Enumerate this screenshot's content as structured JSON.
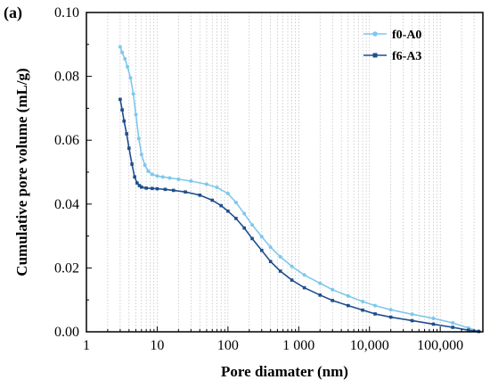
{
  "panel_label": "(a)",
  "chart_data": {
    "type": "line",
    "xlabel": "Pore diamater (nm)",
    "ylabel": "Cumulative pore volume (mL/g)",
    "xscale": "log",
    "xlim": [
      1,
      400000
    ],
    "ylim": [
      0,
      0.1
    ],
    "x_ticks": [
      {
        "value": 1,
        "label": "1"
      },
      {
        "value": 10,
        "label": "10"
      },
      {
        "value": 100,
        "label": "100"
      },
      {
        "value": 1000,
        "label": "1 000"
      },
      {
        "value": 10000,
        "label": "10,000"
      },
      {
        "value": 100000,
        "label": "100,000"
      }
    ],
    "y_ticks": [
      {
        "value": 0,
        "label": "0.00"
      },
      {
        "value": 0.02,
        "label": "0.02"
      },
      {
        "value": 0.04,
        "label": "0.04"
      },
      {
        "value": 0.06,
        "label": "0.06"
      },
      {
        "value": 0.08,
        "label": "0.08"
      },
      {
        "value": 0.1,
        "label": "0.10"
      }
    ],
    "grid": "vertical dotted minor lines",
    "legend_position": "top-right",
    "series": [
      {
        "name": "f0-A0",
        "color": "#7ec8ec",
        "marker": "circle",
        "x": [
          3.0,
          3.2,
          3.5,
          3.8,
          4.2,
          4.6,
          5.0,
          5.5,
          6.0,
          6.7,
          7.5,
          8.5,
          10,
          12,
          15,
          20,
          30,
          50,
          70,
          100,
          130,
          170,
          220,
          300,
          400,
          550,
          800,
          1200,
          2000,
          3000,
          5000,
          8000,
          12000,
          20000,
          40000,
          80000,
          150000,
          250000,
          350000
        ],
        "y": [
          0.0892,
          0.0875,
          0.0855,
          0.083,
          0.0795,
          0.0745,
          0.068,
          0.0605,
          0.0555,
          0.0522,
          0.0503,
          0.0493,
          0.0488,
          0.0485,
          0.0482,
          0.0478,
          0.0472,
          0.0462,
          0.0452,
          0.0433,
          0.0405,
          0.037,
          0.0335,
          0.0298,
          0.0265,
          0.0235,
          0.0205,
          0.0178,
          0.0152,
          0.0132,
          0.0112,
          0.0095,
          0.0082,
          0.0069,
          0.0055,
          0.0042,
          0.0028,
          0.0012,
          0.0002
        ]
      },
      {
        "name": "f6-A3",
        "color": "#1f4e8c",
        "marker": "square",
        "x": [
          3.0,
          3.2,
          3.4,
          3.7,
          4.0,
          4.4,
          4.8,
          5.2,
          5.6,
          6.0,
          7.0,
          8.5,
          10,
          13,
          17,
          25,
          40,
          60,
          80,
          100,
          130,
          170,
          220,
          300,
          400,
          550,
          800,
          1200,
          2000,
          3000,
          5000,
          8000,
          12000,
          20000,
          40000,
          80000,
          150000,
          250000,
          350000
        ],
        "y": [
          0.0728,
          0.0695,
          0.066,
          0.062,
          0.0575,
          0.0525,
          0.0485,
          0.0466,
          0.0458,
          0.0453,
          0.045,
          0.0449,
          0.0448,
          0.0446,
          0.0443,
          0.0438,
          0.0428,
          0.0412,
          0.0395,
          0.0378,
          0.0355,
          0.0325,
          0.0292,
          0.0255,
          0.022,
          0.019,
          0.0162,
          0.0138,
          0.0115,
          0.0098,
          0.0082,
          0.0068,
          0.0056,
          0.0046,
          0.0035,
          0.0024,
          0.0014,
          0.0005,
          0.0001
        ]
      }
    ]
  }
}
